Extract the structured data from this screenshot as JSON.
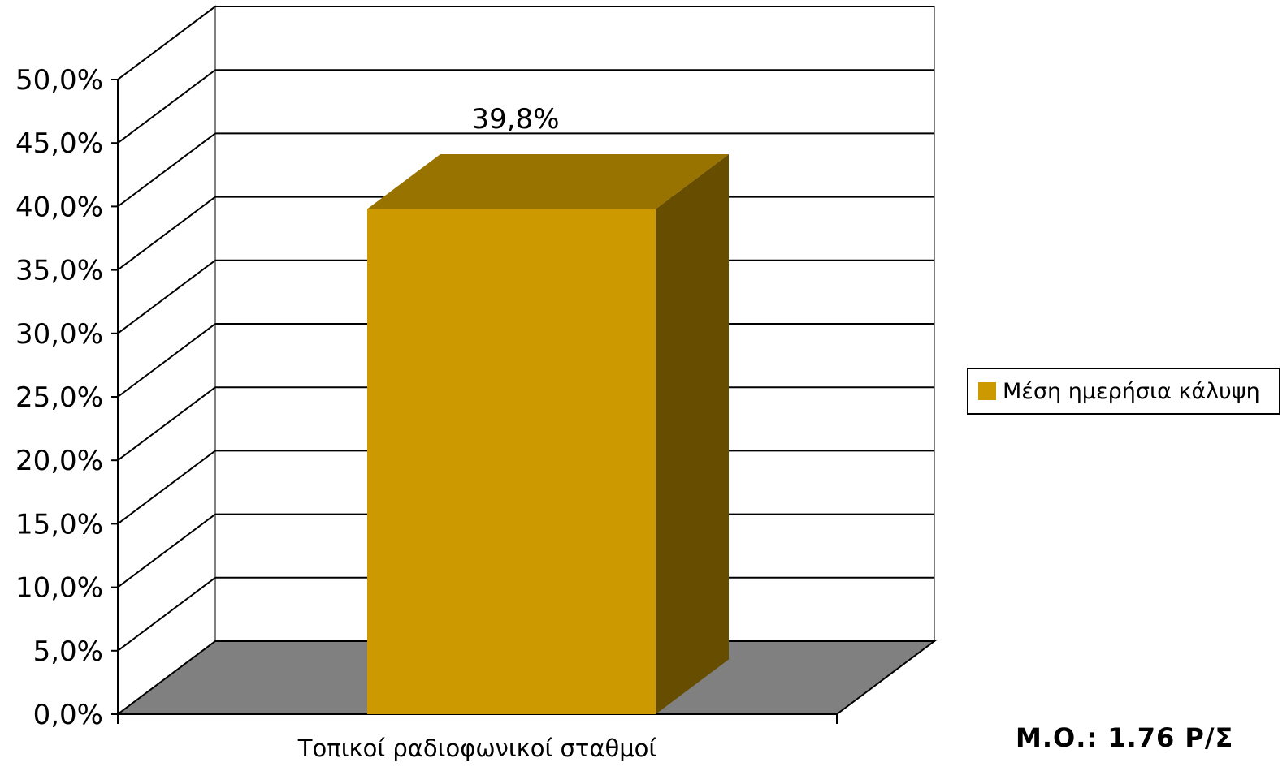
{
  "chart_data": {
    "type": "bar",
    "style": "3d",
    "categories": [
      "Τοπικοί ραδιοφωνικοί σταθμοί"
    ],
    "series": [
      {
        "name": "Μέση ημερήσια κάλυψη",
        "values": [
          39.8
        ],
        "color": "#cc9900",
        "top_color": "#997300",
        "side_color": "#664d00"
      }
    ],
    "data_labels": [
      "39,8%"
    ],
    "yticks": [
      "0,0%",
      "5,0%",
      "10,0%",
      "15,0%",
      "20,0%",
      "25,0%",
      "30,0%",
      "35,0%",
      "40,0%",
      "45,0%",
      "50,0%"
    ],
    "ylim": [
      0,
      50
    ],
    "ytick_step": 5,
    "grid": true,
    "floor_color": "#808080",
    "legend_position": "right"
  },
  "note": "Μ.Ο.: 1.76 Ρ/Σ"
}
